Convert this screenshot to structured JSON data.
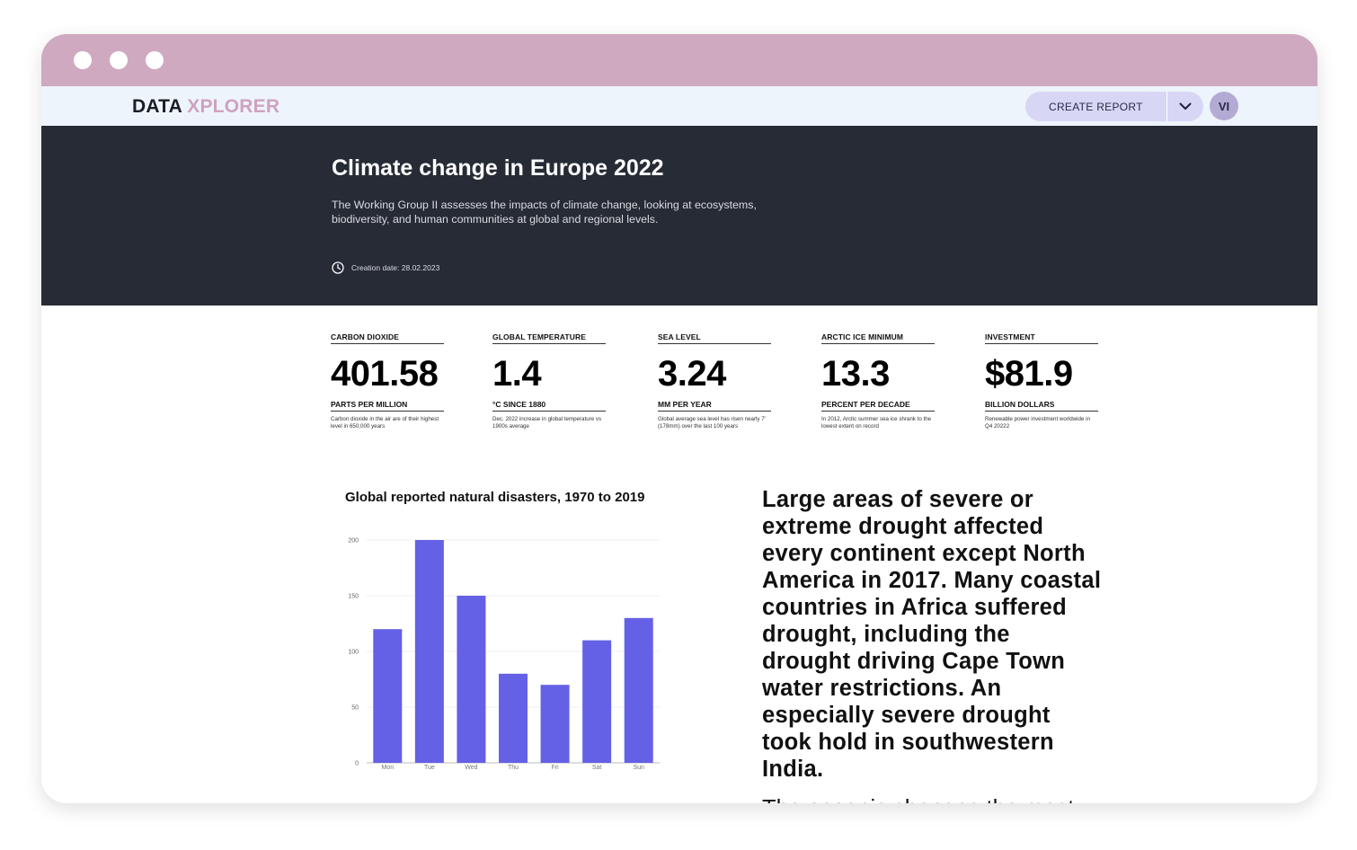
{
  "window": {
    "controls": [
      "dot",
      "dot",
      "dot"
    ]
  },
  "navbar": {
    "logo_part1": "DATA ",
    "logo_part2": "XPLORER",
    "create_report_label": "CREATE REPORT",
    "dropdown_icon": "chevron-down-icon",
    "avatar_initials": "VI"
  },
  "hero": {
    "title": "Climate change in Europe 2022",
    "description": "The Working Group II assesses the impacts of climate change, looking at ecosystems, biodiversity, and human communities at global and regional levels.",
    "date_icon": "clock-icon",
    "creation_date": "Creation date: 28.02.2023"
  },
  "stats": [
    {
      "label": "CARBON DIOXIDE",
      "value": "401.58",
      "unit": "PARTS PER MILLION",
      "note": "Carbon dioxide in the air are of their highest level in 650,000 years"
    },
    {
      "label": "GLOBAL TEMPERATURE",
      "value": "1.4",
      "unit": "°C SINCE 1880",
      "note": "Dec. 2022 increase in global temperature vs 1900s average"
    },
    {
      "label": "SEA LEVEL",
      "value": "3.24",
      "unit": "MM PER YEAR",
      "note": "Global average sea level has risen nearly 7' (178mm) over the last 100 years"
    },
    {
      "label": "ARCTIC ICE MINIMUM",
      "value": "13.3",
      "unit": "PERCENT PER DECADE",
      "note": "In 2012, Arctic summer sea ice shrank to the lowest extent on record"
    },
    {
      "label": "INVESTMENT",
      "value": "$81.9",
      "unit": "BILLION DOLLARS",
      "note": "Renewable power investment worldwide in Q4 20222"
    }
  ],
  "chart_data": {
    "type": "bar",
    "title": "Global reported natural disasters, 1970 to 2019",
    "categories": [
      "Mon",
      "Tue",
      "Wed",
      "Thu",
      "Fri",
      "Sat",
      "Sun"
    ],
    "values": [
      120,
      200,
      150,
      80,
      70,
      110,
      130
    ],
    "yticks": [
      "0",
      "50",
      "100",
      "150",
      "200"
    ],
    "ylim": [
      0,
      200
    ],
    "grid": true,
    "bar_color": "#6461e6"
  },
  "article": {
    "lead": "Large areas of severe or extreme drought affected every continent except North America in 2017. Many coastal countries in Africa suffered drought, including the drought driving Cape Town water restrictions. An especially severe drought took hold in southwestern India.",
    "body": "The oceanic changes the most visible"
  },
  "colors": {
    "titlebar": "#cfa9bf",
    "navbar": "#eef4fb",
    "hero_bg": "#262b35",
    "logo_accent": "#cfa2bd",
    "button_bg": "#d8d6f5",
    "avatar_bg": "#b3abd4",
    "bar": "#6461e6"
  }
}
